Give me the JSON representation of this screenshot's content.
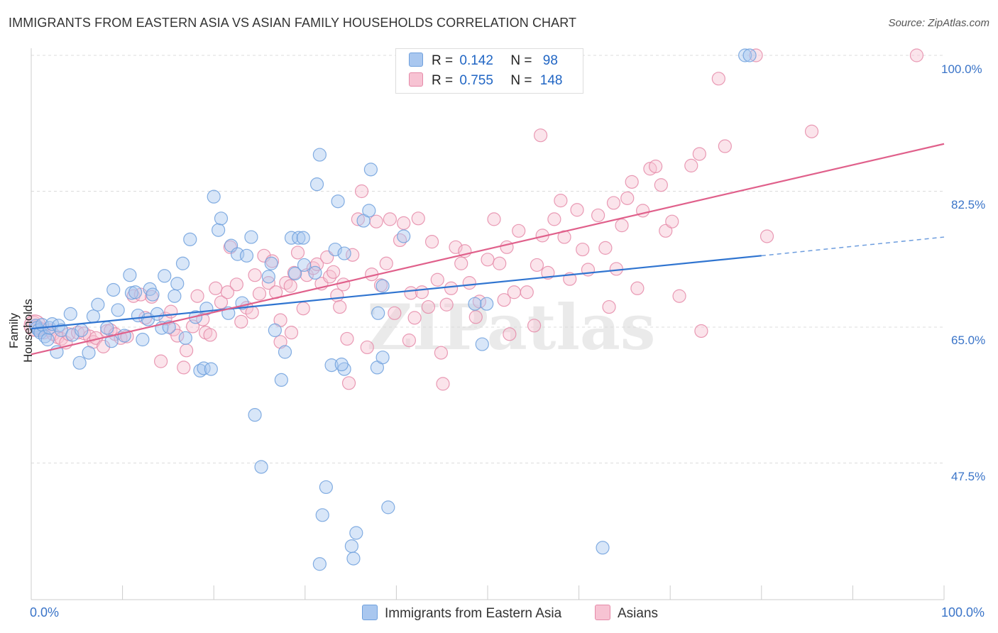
{
  "title": "IMMIGRANTS FROM EASTERN ASIA VS ASIAN FAMILY HOUSEHOLDS CORRELATION CHART",
  "source": "Source: ZipAtlas.com",
  "watermark": "ZIPatlas",
  "colors": {
    "blue": "#6fa0dd",
    "blue_fill": "#a9c7ef",
    "blue_line": "#2f74d0",
    "pink": "#e58aa8",
    "pink_fill": "#f7c3d3",
    "pink_line": "#e0608b",
    "tick_text": "#3a74c8"
  },
  "legend": {
    "rows": [
      {
        "r_label": "R =",
        "r_value": "0.142",
        "n_label": "N =",
        "n_value": "98",
        "series": "blue"
      },
      {
        "r_label": "R =",
        "r_value": "0.755",
        "n_label": "N =",
        "n_value": "148",
        "series": "pink"
      }
    ]
  },
  "bottom_legend": [
    {
      "label": "Immigrants from Eastern Asia",
      "series": "blue"
    },
    {
      "label": "Asians",
      "series": "pink"
    }
  ],
  "chart_data": {
    "type": "scatter",
    "title": "IMMIGRANTS FROM EASTERN ASIA VS ASIAN FAMILY HOUSEHOLDS CORRELATION CHART",
    "xlabel": "",
    "ylabel": "Family Households",
    "xlim": [
      0,
      100
    ],
    "ylim": [
      32.5,
      102
    ],
    "x_tick_labels": [
      "0.0%",
      "100.0%"
    ],
    "y_ticks": [
      47.5,
      65.0,
      82.5,
      100.0
    ],
    "y_tick_labels": [
      "47.5%",
      "65.0%",
      "82.5%",
      "100.0%"
    ],
    "grid": "horizontal dashed",
    "legend_placement": "top-center",
    "series": [
      {
        "name": "Immigrants from Eastern Asia",
        "color": "blue",
        "R": 0.142,
        "N": 98,
        "trend": {
          "x0": 0,
          "y0": 64.8,
          "x1": 80,
          "y1": 74.2,
          "dash_to_x": 100,
          "dash_to_y": 76.6
        },
        "points": [
          [
            0.5,
            65.2
          ],
          [
            0.6,
            64.9
          ],
          [
            0.8,
            64.6
          ],
          [
            1.0,
            64.3
          ],
          [
            1.2,
            65.3
          ],
          [
            1.5,
            63.8
          ],
          [
            1.8,
            63.4
          ],
          [
            2.0,
            64.9
          ],
          [
            2.3,
            65.4
          ],
          [
            2.8,
            61.8
          ],
          [
            3.0,
            65.2
          ],
          [
            3.3,
            64.6
          ],
          [
            4.3,
            66.7
          ],
          [
            4.5,
            64.0
          ],
          [
            5.3,
            60.4
          ],
          [
            5.5,
            64.6
          ],
          [
            6.3,
            61.7
          ],
          [
            6.8,
            66.4
          ],
          [
            7.3,
            67.9
          ],
          [
            8.3,
            64.9
          ],
          [
            8.8,
            63.2
          ],
          [
            9.0,
            69.8
          ],
          [
            9.5,
            67.2
          ],
          [
            10.2,
            63.9
          ],
          [
            10.8,
            71.7
          ],
          [
            11.0,
            69.4
          ],
          [
            11.4,
            69.5
          ],
          [
            11.7,
            66.5
          ],
          [
            12.2,
            63.4
          ],
          [
            12.8,
            66.0
          ],
          [
            13.0,
            69.9
          ],
          [
            13.3,
            69.2
          ],
          [
            13.8,
            66.7
          ],
          [
            14.3,
            64.9
          ],
          [
            14.6,
            71.6
          ],
          [
            15.1,
            65.0
          ],
          [
            15.7,
            69.0
          ],
          [
            16.0,
            70.6
          ],
          [
            16.6,
            73.2
          ],
          [
            16.9,
            63.6
          ],
          [
            17.4,
            76.3
          ],
          [
            18.0,
            66.3
          ],
          [
            18.5,
            59.4
          ],
          [
            18.9,
            59.7
          ],
          [
            19.2,
            67.4
          ],
          [
            19.7,
            59.6
          ],
          [
            20.0,
            81.8
          ],
          [
            20.5,
            77.5
          ],
          [
            20.8,
            79.0
          ],
          [
            21.6,
            66.8
          ],
          [
            21.9,
            75.5
          ],
          [
            22.6,
            74.4
          ],
          [
            23.1,
            68.1
          ],
          [
            23.6,
            74.2
          ],
          [
            24.1,
            76.6
          ],
          [
            24.5,
            53.7
          ],
          [
            25.2,
            47.0
          ],
          [
            26.0,
            71.5
          ],
          [
            26.3,
            73.2
          ],
          [
            26.7,
            64.6
          ],
          [
            27.4,
            58.2
          ],
          [
            27.8,
            61.8
          ],
          [
            28.5,
            76.5
          ],
          [
            28.9,
            71.9
          ],
          [
            29.3,
            76.5
          ],
          [
            29.8,
            76.5
          ],
          [
            29.9,
            73.0
          ],
          [
            31.1,
            72.0
          ],
          [
            31.3,
            83.4
          ],
          [
            31.6,
            87.2
          ],
          [
            31.9,
            40.8
          ],
          [
            31.6,
            34.5
          ],
          [
            32.3,
            44.4
          ],
          [
            32.9,
            60.1
          ],
          [
            33.3,
            75.0
          ],
          [
            33.6,
            81.2
          ],
          [
            34.3,
            74.5
          ],
          [
            35.1,
            36.8
          ],
          [
            35.3,
            35.2
          ],
          [
            35.6,
            38.5
          ],
          [
            36.4,
            78.7
          ],
          [
            37.0,
            80.0
          ],
          [
            37.2,
            85.3
          ],
          [
            37.9,
            59.8
          ],
          [
            38.5,
            70.3
          ],
          [
            39.1,
            41.8
          ],
          [
            40.8,
            76.7
          ],
          [
            43.5,
            100.0
          ],
          [
            48.6,
            68.0
          ],
          [
            49.4,
            62.8
          ],
          [
            49.9,
            68.0
          ],
          [
            62.6,
            36.6
          ],
          [
            78.2,
            100.0
          ],
          [
            78.7,
            100.0
          ],
          [
            38.5,
            61.1
          ],
          [
            38.0,
            66.8
          ],
          [
            34.3,
            59.6
          ],
          [
            34.0,
            60.2
          ]
        ]
      },
      {
        "name": "Asians",
        "color": "pink",
        "R": 0.755,
        "N": 148,
        "trend": {
          "x0": 0,
          "y0": 61.5,
          "x1": 100,
          "y1": 88.6
        },
        "points": [
          [
            0.3,
            65.6
          ],
          [
            0.6,
            65.1
          ],
          [
            0.9,
            64.9
          ],
          [
            1.1,
            64.7
          ],
          [
            1.4,
            64.3
          ],
          [
            2.0,
            64.6
          ],
          [
            2.4,
            64.1
          ],
          [
            2.9,
            63.7
          ],
          [
            3.3,
            63.5
          ],
          [
            3.8,
            63.0
          ],
          [
            4.1,
            64.1
          ],
          [
            5.1,
            64.3
          ],
          [
            5.8,
            64.2
          ],
          [
            6.4,
            63.8
          ],
          [
            6.8,
            63.1
          ],
          [
            7.1,
            63.6
          ],
          [
            7.9,
            62.5
          ],
          [
            8.3,
            64.5
          ],
          [
            8.7,
            64.6
          ],
          [
            9.2,
            64.1
          ],
          [
            9.8,
            63.6
          ],
          [
            10.5,
            63.8
          ],
          [
            11.2,
            69.0
          ],
          [
            12.0,
            69.2
          ],
          [
            12.5,
            66.2
          ],
          [
            13.2,
            68.9
          ],
          [
            14.2,
            60.6
          ],
          [
            14.7,
            66.1
          ],
          [
            15.3,
            67.0
          ],
          [
            15.6,
            64.7
          ],
          [
            16.0,
            63.9
          ],
          [
            16.7,
            59.8
          ],
          [
            17.0,
            62.0
          ],
          [
            17.7,
            65.1
          ],
          [
            18.2,
            69.0
          ],
          [
            18.8,
            66.0
          ],
          [
            19.1,
            64.3
          ],
          [
            19.6,
            64.0
          ],
          [
            20.2,
            70.0
          ],
          [
            20.8,
            68.2
          ],
          [
            21.5,
            69.5
          ],
          [
            21.8,
            75.3
          ],
          [
            22.5,
            70.5
          ],
          [
            23.0,
            65.7
          ],
          [
            23.6,
            67.5
          ],
          [
            24.2,
            66.9
          ],
          [
            24.5,
            71.7
          ],
          [
            25.0,
            69.3
          ],
          [
            25.5,
            74.2
          ],
          [
            26.0,
            70.7
          ],
          [
            26.4,
            73.5
          ],
          [
            26.8,
            69.5
          ],
          [
            27.3,
            65.9
          ],
          [
            27.9,
            70.7
          ],
          [
            28.4,
            70.3
          ],
          [
            28.8,
            72.0
          ],
          [
            29.2,
            74.6
          ],
          [
            29.8,
            67.4
          ],
          [
            30.2,
            71.7
          ],
          [
            30.9,
            72.6
          ],
          [
            31.3,
            73.1
          ],
          [
            31.8,
            70.6
          ],
          [
            32.4,
            74.0
          ],
          [
            32.7,
            71.5
          ],
          [
            33.1,
            72.1
          ],
          [
            33.5,
            69.1
          ],
          [
            33.8,
            67.6
          ],
          [
            34.2,
            70.5
          ],
          [
            34.8,
            57.8
          ],
          [
            35.2,
            74.3
          ],
          [
            35.8,
            78.9
          ],
          [
            36.2,
            82.5
          ],
          [
            36.8,
            62.4
          ],
          [
            37.3,
            71.8
          ],
          [
            37.8,
            78.6
          ],
          [
            38.3,
            70.4
          ],
          [
            38.9,
            73.2
          ],
          [
            39.3,
            78.9
          ],
          [
            39.8,
            66.8
          ],
          [
            40.4,
            76.2
          ],
          [
            40.8,
            78.4
          ],
          [
            41.6,
            69.4
          ],
          [
            42.0,
            66.2
          ],
          [
            42.4,
            79.0
          ],
          [
            42.8,
            69.5
          ],
          [
            43.5,
            67.6
          ],
          [
            43.9,
            76.0
          ],
          [
            44.5,
            71.1
          ],
          [
            45.1,
            57.7
          ],
          [
            45.5,
            67.9
          ],
          [
            46.0,
            70.0
          ],
          [
            46.5,
            75.3
          ],
          [
            47.1,
            73.2
          ],
          [
            47.5,
            74.8
          ],
          [
            48.0,
            70.7
          ],
          [
            48.7,
            66.3
          ],
          [
            49.1,
            68.3
          ],
          [
            50.0,
            73.7
          ],
          [
            50.7,
            78.9
          ],
          [
            51.3,
            73.2
          ],
          [
            51.8,
            68.5
          ],
          [
            52.1,
            75.3
          ],
          [
            52.9,
            69.5
          ],
          [
            53.4,
            77.4
          ],
          [
            54.3,
            69.5
          ],
          [
            55.1,
            65.2
          ],
          [
            55.4,
            73.0
          ],
          [
            56.0,
            76.8
          ],
          [
            56.6,
            72.0
          ],
          [
            57.3,
            78.9
          ],
          [
            58.0,
            81.3
          ],
          [
            58.4,
            76.6
          ],
          [
            59.0,
            71.2
          ],
          [
            59.8,
            80.1
          ],
          [
            60.4,
            75.0
          ],
          [
            61.0,
            72.4
          ],
          [
            62.1,
            79.4
          ],
          [
            62.9,
            75.2
          ],
          [
            63.3,
            67.6
          ],
          [
            63.8,
            81.0
          ],
          [
            64.1,
            72.5
          ],
          [
            64.7,
            78.1
          ],
          [
            65.3,
            81.6
          ],
          [
            65.8,
            83.7
          ],
          [
            66.4,
            70.0
          ],
          [
            67.0,
            80.0
          ],
          [
            67.8,
            85.4
          ],
          [
            68.4,
            85.7
          ],
          [
            69.0,
            83.3
          ],
          [
            69.5,
            77.4
          ],
          [
            70.2,
            78.6
          ],
          [
            71.0,
            69.0
          ],
          [
            72.3,
            85.8
          ],
          [
            73.2,
            87.3
          ],
          [
            75.3,
            97.0
          ],
          [
            76.0,
            88.3
          ],
          [
            79.4,
            100.0
          ],
          [
            80.6,
            76.7
          ],
          [
            85.5,
            90.2
          ],
          [
            97.0,
            100.0
          ],
          [
            34.6,
            63.5
          ],
          [
            55.8,
            89.7
          ],
          [
            73.4,
            64.5
          ],
          [
            28.5,
            64.3
          ],
          [
            27.3,
            63.1
          ],
          [
            44.9,
            61.7
          ],
          [
            52.4,
            64.1
          ],
          [
            41.4,
            63.3
          ]
        ]
      }
    ]
  }
}
